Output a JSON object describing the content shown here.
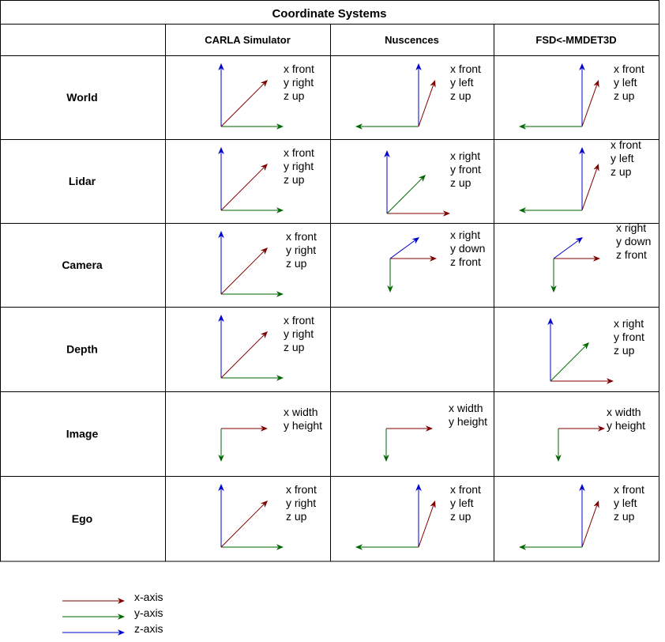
{
  "title": "Coordinate Systems",
  "columns": [
    "CARLA Simulator",
    "Nuscences",
    "FSD<-MMDET3D"
  ],
  "rows": [
    "World",
    "Lidar",
    "Camera",
    "Depth",
    "Image",
    "Ego"
  ],
  "colors": {
    "x": "#800000",
    "y": "#006600",
    "z": "#0000cc"
  },
  "cells": [
    [
      {
        "style": "A",
        "labels": [
          "x front",
          "y right",
          "z up"
        ]
      },
      {
        "style": "B",
        "labels": [
          "x front",
          "y left",
          "z up"
        ]
      },
      {
        "style": "B",
        "labels": [
          "x front",
          "y left",
          "z up"
        ]
      }
    ],
    [
      {
        "style": "A",
        "labels": [
          "x front",
          "y right",
          "z up"
        ]
      },
      {
        "style": "C",
        "labels": [
          "x right",
          "y front",
          "z up"
        ]
      },
      {
        "style": "B",
        "labels": [
          "x front",
          "y left",
          "z up"
        ]
      }
    ],
    [
      {
        "style": "A",
        "labels": [
          "x front",
          "y right",
          "z up"
        ]
      },
      {
        "style": "D",
        "labels": [
          "x right",
          "y down",
          "z front"
        ]
      },
      {
        "style": "D",
        "labels": [
          "x right",
          "y down",
          "z front"
        ]
      }
    ],
    [
      {
        "style": "A",
        "labels": [
          "x front",
          "y right",
          "z up"
        ]
      },
      null,
      {
        "style": "C",
        "labels": [
          "x right",
          "y front",
          "z up"
        ]
      }
    ],
    [
      {
        "style": "E",
        "labels": [
          "x width",
          "y height"
        ]
      },
      {
        "style": "E",
        "labels": [
          "x width",
          "y height"
        ]
      },
      {
        "style": "E",
        "labels": [
          "x width",
          "y height"
        ]
      }
    ],
    [
      {
        "style": "A",
        "labels": [
          "x front",
          "y right",
          "z up"
        ]
      },
      {
        "style": "B",
        "labels": [
          "x front",
          "y left",
          "z up"
        ]
      },
      {
        "style": "B",
        "labels": [
          "x front",
          "y left",
          "z up"
        ]
      }
    ]
  ],
  "legend": [
    {
      "axis": "x",
      "label": "x-axis"
    },
    {
      "axis": "y",
      "label": "y-axis"
    },
    {
      "axis": "z",
      "label": "z-axis"
    }
  ]
}
